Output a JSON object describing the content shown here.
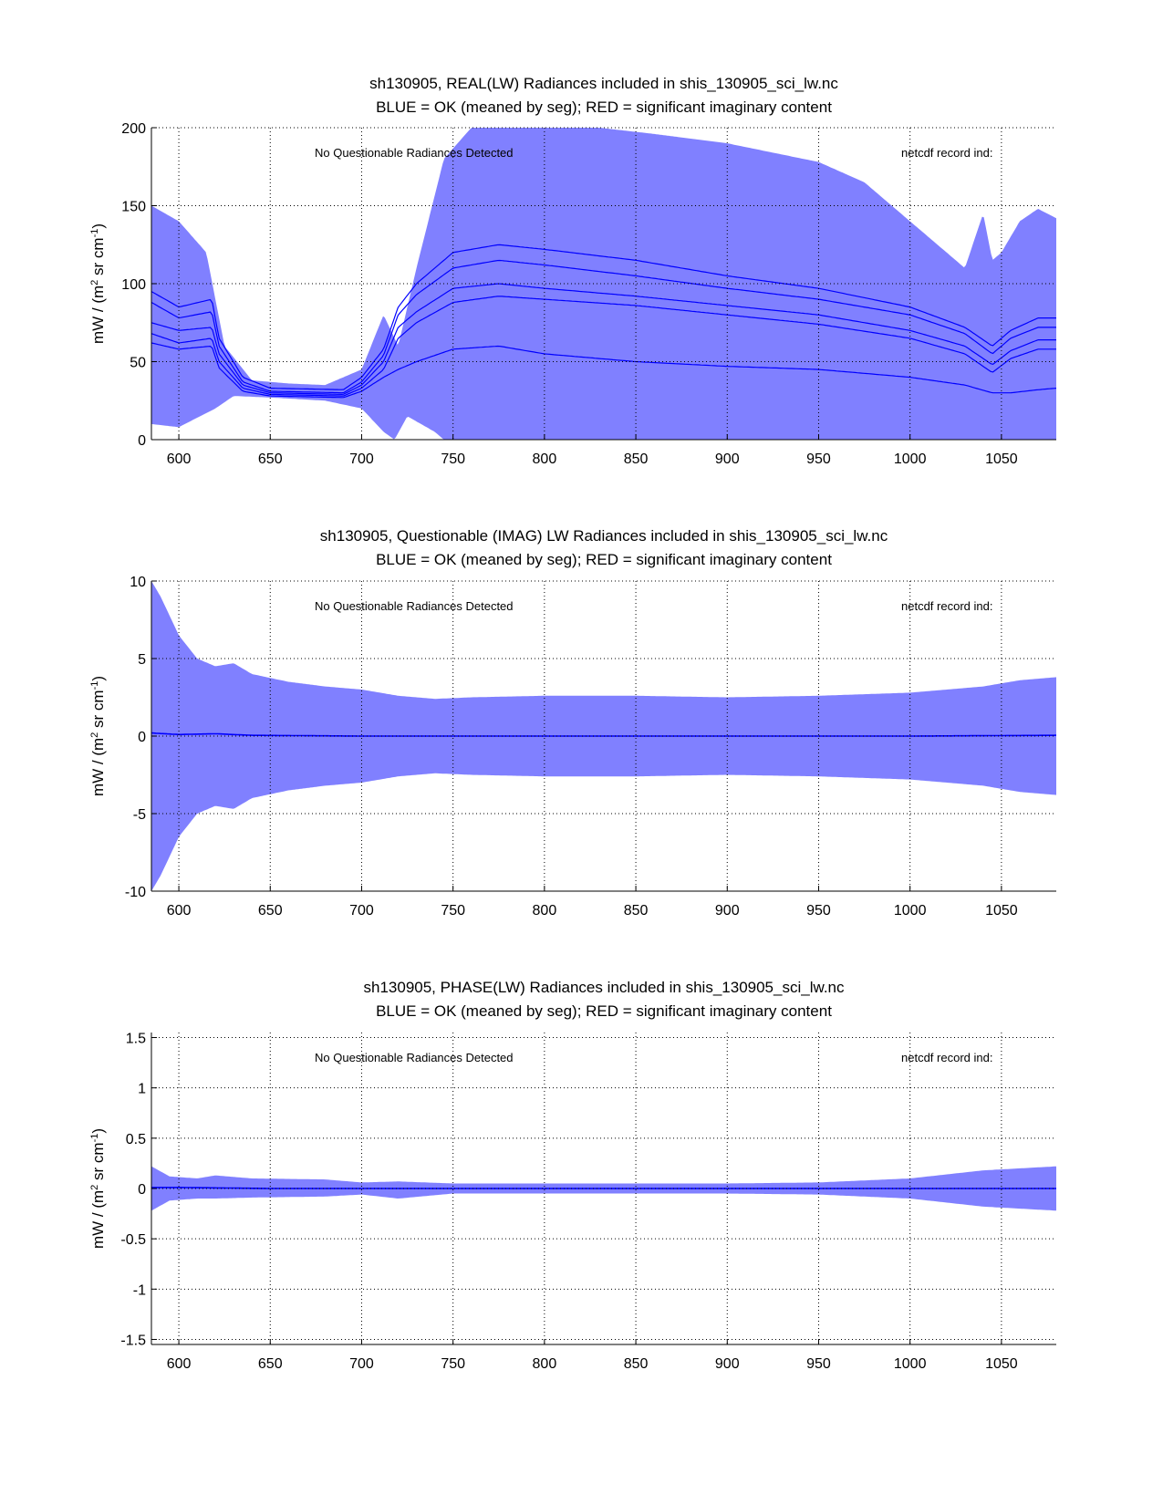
{
  "chart_data": [
    {
      "type": "area",
      "title": "sh130905, REAL(LW) Radiances included in shis_130905_sci_lw.nc",
      "subtitle": "BLUE = OK (meaned by seg); RED = significant imaginary content",
      "ylabel_main": "mW / (m",
      "ylabel_sup1": "2",
      "ylabel_mid": " sr cm",
      "ylabel_sup2": "-1",
      "ylabel_end": ")",
      "annotation_left": "No Questionable Radiances Detected",
      "annotation_right": "netcdf record ind:",
      "xlim": [
        585,
        1080
      ],
      "ylim": [
        0,
        200
      ],
      "grid": true,
      "x_ticks": [
        {
          "v": 600,
          "label": "600"
        },
        {
          "v": 650,
          "label": "650"
        },
        {
          "v": 700,
          "label": "700"
        },
        {
          "v": 750,
          "label": "750"
        },
        {
          "v": 800,
          "label": "800"
        },
        {
          "v": 850,
          "label": "850"
        },
        {
          "v": 900,
          "label": "900"
        },
        {
          "v": 950,
          "label": "950"
        },
        {
          "v": 1000,
          "label": "1000"
        },
        {
          "v": 1050,
          "label": "1050"
        }
      ],
      "y_ticks": [
        {
          "v": 0,
          "label": "0"
        },
        {
          "v": 50,
          "label": "50"
        },
        {
          "v": 100,
          "label": "100"
        },
        {
          "v": 150,
          "label": "150"
        },
        {
          "v": 200,
          "label": "200"
        }
      ],
      "colors": {
        "envelope": "#8080ff",
        "line": "#0000ff"
      },
      "envelope_upper": {
        "x": [
          585,
          600,
          615,
          625,
          640,
          660,
          680,
          700,
          712,
          720,
          730,
          745,
          760,
          780,
          800,
          830,
          860,
          900,
          950,
          975,
          990,
          1010,
          1020,
          1030,
          1040,
          1045,
          1050,
          1060,
          1070,
          1080
        ],
        "y": [
          150,
          140,
          120,
          60,
          38,
          36,
          35,
          45,
          80,
          60,
          110,
          180,
          200,
          200,
          200,
          200,
          196,
          190,
          178,
          165,
          150,
          130,
          120,
          110,
          145,
          115,
          120,
          140,
          148,
          142
        ]
      },
      "envelope_lower": {
        "x": [
          585,
          600,
          620,
          630,
          650,
          680,
          700,
          712,
          718,
          725,
          740,
          745,
          760,
          800,
          900,
          1000,
          1080
        ],
        "y": [
          10,
          8,
          20,
          28,
          27,
          25,
          20,
          5,
          0,
          15,
          5,
          0,
          0,
          0,
          0,
          0,
          0
        ]
      },
      "series": [
        {
          "x": [
            585,
            600,
            618,
            622,
            635,
            650,
            690,
            700,
            712,
            720,
            730,
            750,
            775,
            800,
            850,
            900,
            950,
            1000,
            1030,
            1045,
            1055,
            1070,
            1080
          ],
          "y": [
            95,
            85,
            90,
            65,
            40,
            33,
            32,
            40,
            58,
            85,
            100,
            120,
            125,
            122,
            115,
            105,
            97,
            85,
            72,
            60,
            70,
            78,
            78
          ]
        },
        {
          "x": [
            585,
            600,
            618,
            622,
            635,
            650,
            690,
            700,
            712,
            720,
            730,
            750,
            775,
            800,
            850,
            900,
            950,
            1000,
            1030,
            1045,
            1055,
            1070,
            1080
          ],
          "y": [
            88,
            78,
            82,
            60,
            37,
            31,
            30,
            37,
            54,
            80,
            93,
            110,
            115,
            112,
            105,
            97,
            90,
            80,
            68,
            55,
            65,
            72,
            72
          ]
        },
        {
          "x": [
            585,
            600,
            618,
            622,
            635,
            650,
            690,
            700,
            712,
            720,
            730,
            750,
            775,
            800,
            850,
            900,
            950,
            1000,
            1030,
            1045,
            1055,
            1070,
            1080
          ],
          "y": [
            75,
            70,
            72,
            55,
            35,
            30,
            29,
            35,
            50,
            72,
            82,
            97,
            100,
            97,
            92,
            86,
            80,
            70,
            60,
            48,
            57,
            64,
            64
          ]
        },
        {
          "x": [
            585,
            600,
            618,
            622,
            635,
            650,
            690,
            700,
            712,
            720,
            730,
            750,
            775,
            800,
            850,
            900,
            950,
            1000,
            1030,
            1045,
            1055,
            1070,
            1080
          ],
          "y": [
            68,
            62,
            65,
            50,
            33,
            29,
            28,
            33,
            45,
            65,
            75,
            88,
            92,
            90,
            86,
            80,
            74,
            65,
            55,
            43,
            52,
            58,
            58
          ]
        },
        {
          "x": [
            585,
            600,
            618,
            622,
            635,
            650,
            690,
            700,
            712,
            720,
            730,
            750,
            775,
            800,
            850,
            900,
            950,
            1000,
            1030,
            1045,
            1055,
            1070,
            1080
          ],
          "y": [
            62,
            58,
            60,
            46,
            31,
            28,
            27,
            31,
            40,
            45,
            50,
            58,
            60,
            55,
            50,
            47,
            45,
            40,
            35,
            30,
            30,
            32,
            33
          ]
        }
      ]
    },
    {
      "type": "area",
      "title": "sh130905, Questionable (IMAG) LW Radiances included in shis_130905_sci_lw.nc",
      "subtitle": "BLUE = OK (meaned by seg); RED = significant imaginary content",
      "ylabel_main": "mW / (m",
      "ylabel_sup1": "2",
      "ylabel_mid": " sr cm",
      "ylabel_sup2": "-1",
      "ylabel_end": ")",
      "annotation_left": "No Questionable Radiances Detected",
      "annotation_right": "netcdf record ind:",
      "xlim": [
        585,
        1080
      ],
      "ylim": [
        -10,
        10
      ],
      "grid": true,
      "x_ticks": [
        {
          "v": 600,
          "label": "600"
        },
        {
          "v": 650,
          "label": "650"
        },
        {
          "v": 700,
          "label": "700"
        },
        {
          "v": 750,
          "label": "750"
        },
        {
          "v": 800,
          "label": "800"
        },
        {
          "v": 850,
          "label": "850"
        },
        {
          "v": 900,
          "label": "900"
        },
        {
          "v": 950,
          "label": "950"
        },
        {
          "v": 1000,
          "label": "1000"
        },
        {
          "v": 1050,
          "label": "1050"
        }
      ],
      "y_ticks": [
        {
          "v": -10,
          "label": "-10"
        },
        {
          "v": -5,
          "label": "-5"
        },
        {
          "v": 0,
          "label": "0"
        },
        {
          "v": 5,
          "label": "5"
        },
        {
          "v": 10,
          "label": "10"
        }
      ],
      "colors": {
        "envelope": "#8080ff",
        "line": "#0000ff"
      },
      "envelope_upper": {
        "x": [
          585,
          590,
          600,
          610,
          620,
          630,
          640,
          660,
          680,
          700,
          720,
          740,
          760,
          800,
          850,
          900,
          950,
          1000,
          1040,
          1060,
          1080
        ],
        "y": [
          10,
          9,
          6.5,
          5,
          4.5,
          4.7,
          4,
          3.5,
          3.2,
          3,
          2.6,
          2.4,
          2.5,
          2.6,
          2.6,
          2.5,
          2.6,
          2.8,
          3.2,
          3.6,
          3.8
        ]
      },
      "envelope_lower": {
        "x": [
          585,
          590,
          600,
          610,
          620,
          630,
          640,
          660,
          680,
          700,
          720,
          740,
          760,
          800,
          850,
          900,
          950,
          1000,
          1040,
          1060,
          1080
        ],
        "y": [
          -10,
          -9,
          -6.5,
          -5,
          -4.5,
          -4.7,
          -4,
          -3.5,
          -3.2,
          -3,
          -2.6,
          -2.4,
          -2.5,
          -2.6,
          -2.6,
          -2.5,
          -2.6,
          -2.8,
          -3.2,
          -3.6,
          -3.8
        ]
      },
      "series": [
        {
          "x": [
            585,
            600,
            620,
            640,
            700,
            800,
            900,
            1000,
            1080
          ],
          "y": [
            0.2,
            0.1,
            0.15,
            0.05,
            0,
            0,
            0,
            0,
            0.05
          ]
        }
      ]
    },
    {
      "type": "area",
      "title": "sh130905, PHASE(LW) Radiances included in shis_130905_sci_lw.nc",
      "subtitle": "BLUE = OK (meaned by seg); RED = significant imaginary content",
      "ylabel_main": "mW / (m",
      "ylabel_sup1": "2",
      "ylabel_mid": " sr cm",
      "ylabel_sup2": "-1",
      "ylabel_end": ")",
      "annotation_left": "No Questionable Radiances Detected",
      "annotation_right": "netcdf record ind:",
      "xlim": [
        585,
        1080
      ],
      "ylim": [
        -1.55,
        1.55
      ],
      "grid": true,
      "x_ticks": [
        {
          "v": 600,
          "label": "600"
        },
        {
          "v": 650,
          "label": "650"
        },
        {
          "v": 700,
          "label": "700"
        },
        {
          "v": 750,
          "label": "750"
        },
        {
          "v": 800,
          "label": "800"
        },
        {
          "v": 850,
          "label": "850"
        },
        {
          "v": 900,
          "label": "900"
        },
        {
          "v": 950,
          "label": "950"
        },
        {
          "v": 1000,
          "label": "1000"
        },
        {
          "v": 1050,
          "label": "1050"
        }
      ],
      "y_ticks": [
        {
          "v": -1.5,
          "label": "-1.5"
        },
        {
          "v": -1,
          "label": "-1"
        },
        {
          "v": -0.5,
          "label": "-0.5"
        },
        {
          "v": 0,
          "label": "0"
        },
        {
          "v": 0.5,
          "label": "0.5"
        },
        {
          "v": 1,
          "label": "1"
        },
        {
          "v": 1.5,
          "label": "1.5"
        }
      ],
      "colors": {
        "envelope": "#8080ff",
        "line": "#0000ff"
      },
      "envelope_upper": {
        "x": [
          585,
          595,
          610,
          620,
          640,
          680,
          700,
          720,
          750,
          800,
          850,
          900,
          950,
          1000,
          1040,
          1080
        ],
        "y": [
          0.22,
          0.12,
          0.1,
          0.13,
          0.1,
          0.09,
          0.06,
          0.07,
          0.05,
          0.05,
          0.05,
          0.05,
          0.06,
          0.1,
          0.18,
          0.22
        ]
      },
      "envelope_lower": {
        "x": [
          585,
          595,
          610,
          620,
          640,
          680,
          700,
          720,
          750,
          800,
          850,
          900,
          950,
          1000,
          1040,
          1080
        ],
        "y": [
          -0.22,
          -0.12,
          -0.1,
          -0.1,
          -0.09,
          -0.08,
          -0.06,
          -0.1,
          -0.05,
          -0.05,
          -0.05,
          -0.05,
          -0.06,
          -0.1,
          -0.18,
          -0.22
        ]
      },
      "series": [
        {
          "x": [
            585,
            600,
            650,
            700,
            750,
            800,
            900,
            1000,
            1080
          ],
          "y": [
            0.01,
            0.01,
            0,
            0,
            0,
            0,
            0,
            0,
            0
          ]
        }
      ]
    }
  ]
}
